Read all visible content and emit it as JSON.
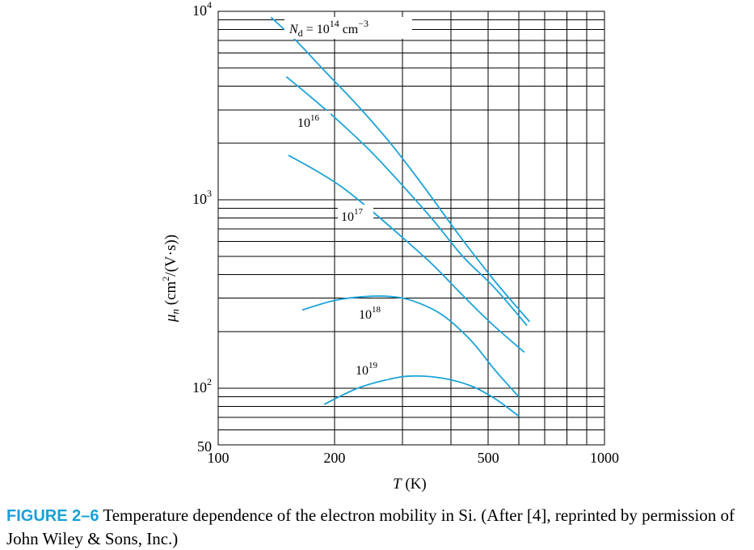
{
  "chart_data": {
    "type": "line",
    "scale": {
      "x": "log",
      "y": "log"
    },
    "xlabel_italic": "T",
    "xlabel_unit": " (K)",
    "ylabel_var": "μ",
    "ylabel_sub": "n",
    "ylabel_open": " (cm",
    "ylabel_sup": "2",
    "ylabel_close": "/(V·s))",
    "xlim": [
      100,
      1000
    ],
    "ylim": [
      50,
      10000
    ],
    "x_ticks": [
      {
        "value": 100,
        "label": "100"
      },
      {
        "value": 200,
        "label": "200"
      },
      {
        "value": 500,
        "label": "500"
      },
      {
        "value": 1000,
        "label": "1000"
      }
    ],
    "y_ticks": [
      {
        "value": 10000,
        "base": "10",
        "exp": "4"
      },
      {
        "value": 1000,
        "base": "10",
        "exp": "3"
      },
      {
        "value": 100,
        "base": "10",
        "exp": "2"
      },
      {
        "value": 50,
        "base": "50",
        "exp": ""
      }
    ],
    "x_grid": [
      100,
      200,
      300,
      400,
      500,
      600,
      700,
      800,
      900,
      1000
    ],
    "y_grid": [
      50,
      60,
      70,
      80,
      90,
      100,
      200,
      300,
      400,
      500,
      600,
      700,
      800,
      900,
      1000,
      2000,
      3000,
      4000,
      5000,
      6000,
      7000,
      8000,
      9000,
      10000
    ],
    "series": [
      {
        "name": "Nd = 1e14 cm^-3",
        "label_parts": {
          "sym": "N",
          "sub": "d",
          "eq": " = 10",
          "exp": "14",
          "unit": " cm",
          "unit_exp": "−3"
        },
        "x": [
          137,
          160,
          190,
          230,
          280,
          340,
          420,
          520,
          640
        ],
        "y": [
          9300,
          6900,
          4750,
          3150,
          1980,
          1180,
          650,
          370,
          225
        ]
      },
      {
        "name": "1e16",
        "label_parts": {
          "base": "10",
          "exp": "16"
        },
        "x": [
          150,
          180,
          210,
          250,
          300,
          360,
          430,
          520,
          630
        ],
        "y": [
          4500,
          3300,
          2500,
          1780,
          1190,
          780,
          500,
          340,
          215
        ]
      },
      {
        "name": "1e17",
        "label_parts": {
          "base": "10",
          "exp": "17"
        },
        "x": [
          152,
          180,
          210,
          250,
          300,
          360,
          430,
          510,
          620
        ],
        "y": [
          1720,
          1420,
          1160,
          870,
          630,
          450,
          310,
          220,
          155
        ]
      },
      {
        "name": "1e18",
        "label_parts": {
          "base": "10",
          "exp": "18"
        },
        "x": [
          165,
          200,
          240,
          280,
          320,
          380,
          450,
          520,
          600
        ],
        "y": [
          260,
          292,
          306,
          306,
          290,
          245,
          180,
          125,
          90
        ]
      },
      {
        "name": "1e19",
        "label_parts": {
          "base": "10",
          "exp": "19"
        },
        "x": [
          188,
          230,
          280,
          320,
          380,
          450,
          520,
          600
        ],
        "y": [
          82,
          100,
          112,
          116,
          113,
          103,
          88,
          71
        ]
      }
    ]
  },
  "caption": {
    "figure_number": "FIGURE 2–6",
    "text": " Temperature dependence of the electron mobility in Si. (After [4], reprinted by permission of John Wiley & Sons, Inc.)"
  },
  "colors": {
    "curve": "#1ea3d8",
    "figure_number": "#1aa0d8"
  }
}
